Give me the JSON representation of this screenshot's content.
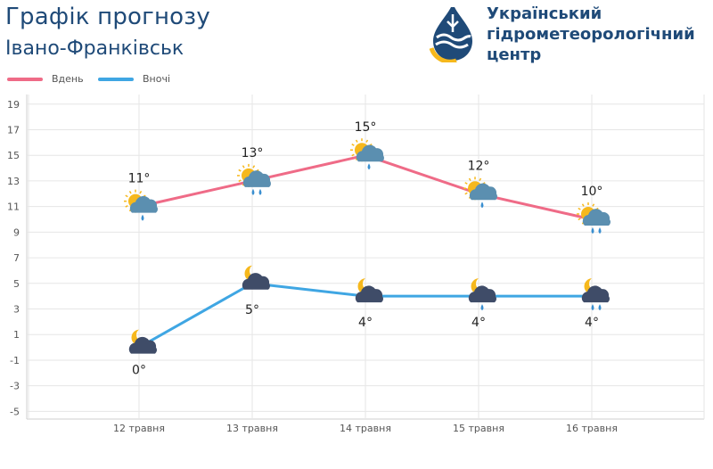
{
  "header": {
    "title": "Графік прогнозу",
    "city": "Івано-Франківськ",
    "org_lines": [
      "Український",
      "гідрометеорологічний",
      "центр"
    ]
  },
  "colors": {
    "day": "#ef6b87",
    "night": "#3fa6e3",
    "title": "#1f4a78",
    "grid": "#e6e6e6",
    "sun": "#f6b81c",
    "cloud_day": "#5b8fb0",
    "cloud_night": "#3f4c68",
    "drop": "#3a8fd0"
  },
  "chart_data": {
    "type": "line",
    "categories": [
      "12 травня",
      "13 травня",
      "14 травня",
      "15 травня",
      "16 травня"
    ],
    "series": [
      {
        "name": "Вдень",
        "values": [
          11,
          13,
          15,
          12,
          10
        ],
        "labels": [
          "11°",
          "13°",
          "15°",
          "12°",
          "10°"
        ],
        "icons": [
          "sun-cloud-rain-icon",
          "sun-cloud-heavy-rain-icon",
          "sun-cloud-rain-icon",
          "sun-cloud-rain-icon",
          "sun-cloud-heavy-rain-icon"
        ]
      },
      {
        "name": "Вночі",
        "values": [
          0,
          5,
          4,
          4,
          4
        ],
        "labels": [
          "0°",
          "5°",
          "4°",
          "4°",
          "4°"
        ],
        "icons": [
          "moon-cloud-icon",
          "moon-cloud-icon",
          "moon-cloud-icon",
          "moon-cloud-rain-icon",
          "moon-cloud-heavy-rain-icon"
        ]
      }
    ],
    "yticks": [
      19,
      17,
      15,
      13,
      11,
      9,
      7,
      5,
      3,
      1,
      -1,
      -3,
      -5
    ],
    "ylim": [
      -5.5,
      20
    ],
    "grid": true,
    "legend": "top-left"
  }
}
